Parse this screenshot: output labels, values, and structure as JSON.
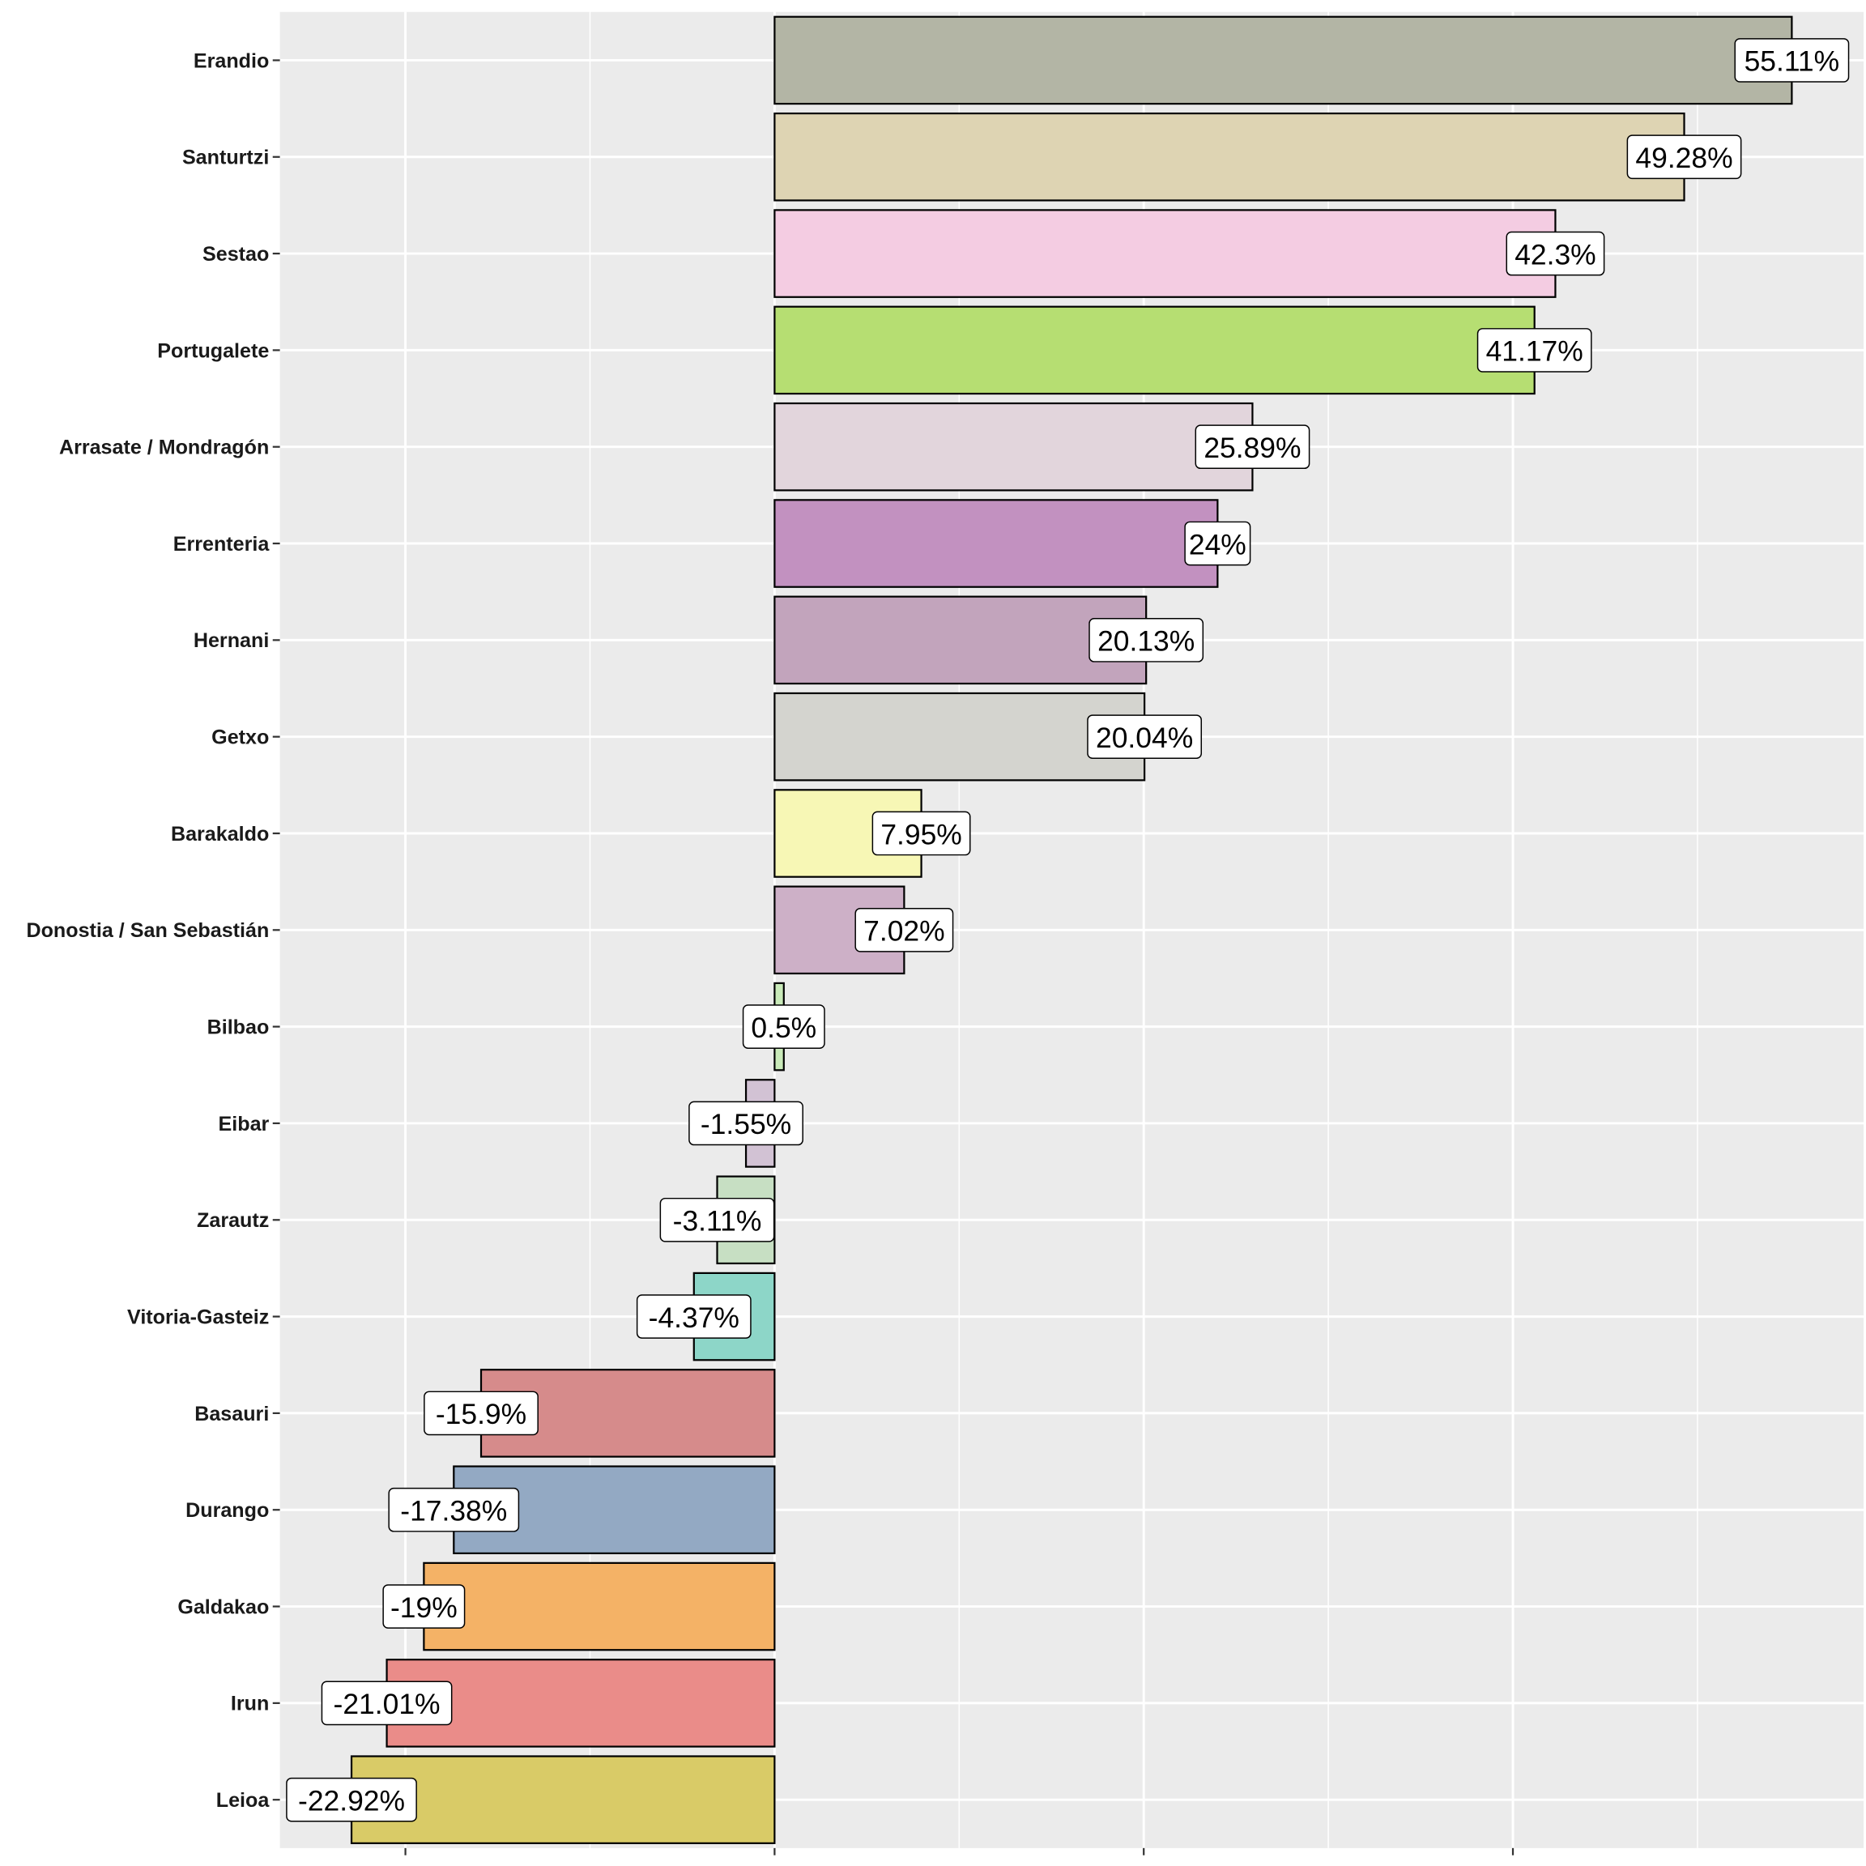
{
  "chart_data": {
    "type": "bar",
    "orientation": "horizontal",
    "title": "",
    "xlabel": "",
    "ylabel": "",
    "xlim": [
      -26.8,
      59.0
    ],
    "x_major_ticks": [
      -20,
      0,
      20,
      40
    ],
    "x_tick_labels_shown": false,
    "grid": true,
    "categories": [
      "Erandio",
      "Santurtzi",
      "Sestao",
      "Portugalete",
      "Arrasate / Mondragón",
      "Errenteria",
      "Hernani",
      "Getxo",
      "Barakaldo",
      "Donostia / San Sebastián",
      "Bilbao",
      "Eibar",
      "Zarautz",
      "Vitoria-Gasteiz",
      "Basauri",
      "Durango",
      "Galdakao",
      "Irun",
      "Leioa"
    ],
    "values": [
      55.11,
      49.28,
      42.3,
      41.17,
      25.89,
      24,
      20.13,
      20.04,
      7.95,
      7.02,
      0.5,
      -1.55,
      -3.11,
      -4.37,
      -15.9,
      -17.38,
      -19,
      -21.01,
      -22.92
    ],
    "data_labels": [
      "55.11%",
      "49.28%",
      "42.3%",
      "41.17%",
      "25.89%",
      "24%",
      "20.13%",
      "20.04%",
      "7.95%",
      "7.02%",
      "0.5%",
      "-1.55%",
      "-3.11%",
      "-4.37%",
      "-15.9%",
      "-17.38%",
      "-19%",
      "-21.01%",
      "-22.92%"
    ],
    "colors": [
      "#b3b5a5",
      "#ded4b3",
      "#f4cce2",
      "#b6de72",
      "#e2d5dc",
      "#c291c0",
      "#c2a4bc",
      "#d4d4cf",
      "#f7f7b5",
      "#cdb0c7",
      "#c9eab9",
      "#d2c2d4",
      "#c7dfc3",
      "#8dd6c8",
      "#d68b8b",
      "#93a9c3",
      "#f4b266",
      "#ea8c89",
      "#d9cb67"
    ],
    "panel_background": "#ebebeb"
  }
}
